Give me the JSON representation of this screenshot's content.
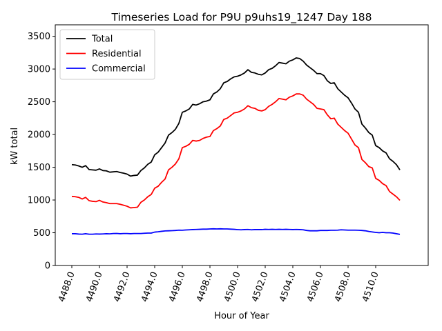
{
  "chart_data": {
    "type": "line",
    "title": "Timeseries Load for P9U p9uhs19_1247  Day 188",
    "xlabel": "Hour of Year",
    "ylabel": "kW total",
    "xlim": [
      4486.8,
      4513.8
    ],
    "ylim": [
      0,
      3675
    ],
    "xticks": [
      4488,
      4490,
      4492,
      4494,
      4496,
      4498,
      4500,
      4502,
      4504,
      4506,
      4508,
      4510
    ],
    "xtick_labels": [
      "4488.0",
      "4490.0",
      "4492.0",
      "4494.0",
      "4496.0",
      "4498.0",
      "4500.0",
      "4502.0",
      "4504.0",
      "4506.0",
      "4508.0",
      "4510.0"
    ],
    "yticks": [
      0,
      500,
      1000,
      1500,
      2000,
      2500,
      3000,
      3500
    ],
    "ytick_labels": [
      "0",
      "500",
      "1000",
      "1500",
      "2000",
      "2500",
      "3000",
      "3500"
    ],
    "legend_position": "top-left",
    "x": [
      4488.0,
      4488.25,
      4488.5,
      4488.75,
      4489.0,
      4489.25,
      4489.5,
      4489.75,
      4490.0,
      4490.25,
      4490.5,
      4490.75,
      4491.0,
      4491.25,
      4491.5,
      4491.75,
      4492.0,
      4492.25,
      4492.5,
      4492.75,
      4493.0,
      4493.25,
      4493.5,
      4493.75,
      4494.0,
      4494.25,
      4494.5,
      4494.75,
      4495.0,
      4495.25,
      4495.5,
      4495.75,
      4496.0,
      4496.25,
      4496.5,
      4496.75,
      4497.0,
      4497.25,
      4497.5,
      4497.75,
      4498.0,
      4498.25,
      4498.5,
      4498.75,
      4499.0,
      4499.25,
      4499.5,
      4499.75,
      4500.0,
      4500.25,
      4500.5,
      4500.75,
      4501.0,
      4501.25,
      4501.5,
      4501.75,
      4502.0,
      4502.25,
      4502.5,
      4502.75,
      4503.0,
      4503.25,
      4503.5,
      4503.75,
      4504.0,
      4504.25,
      4504.5,
      4504.75,
      4505.0,
      4505.25,
      4505.5,
      4505.75,
      4506.0,
      4506.25,
      4506.5,
      4506.75,
      4507.0,
      4507.25,
      4507.5,
      4507.75,
      4508.0,
      4508.25,
      4508.5,
      4508.75,
      4509.0,
      4509.25,
      4509.5,
      4509.75,
      4510.0,
      4510.25,
      4510.5,
      4510.75,
      4511.0,
      4511.25,
      4511.5,
      4511.75
    ],
    "series": [
      {
        "name": "Total",
        "color": "#000000",
        "values": [
          1540,
          1535,
          1520,
          1500,
          1525,
          1465,
          1460,
          1455,
          1475,
          1450,
          1445,
          1425,
          1430,
          1435,
          1420,
          1410,
          1395,
          1365,
          1375,
          1380,
          1450,
          1490,
          1545,
          1580,
          1690,
          1730,
          1800,
          1870,
          1990,
          2030,
          2080,
          2170,
          2340,
          2360,
          2390,
          2460,
          2450,
          2470,
          2500,
          2510,
          2530,
          2620,
          2650,
          2700,
          2790,
          2810,
          2850,
          2880,
          2890,
          2910,
          2940,
          2990,
          2950,
          2940,
          2920,
          2910,
          2940,
          2990,
          3010,
          3050,
          3100,
          3090,
          3080,
          3120,
          3140,
          3170,
          3160,
          3120,
          3060,
          3020,
          2980,
          2930,
          2930,
          2900,
          2820,
          2780,
          2790,
          2700,
          2650,
          2600,
          2560,
          2480,
          2390,
          2340,
          2160,
          2100,
          2030,
          1990,
          1830,
          1800,
          1750,
          1720,
          1630,
          1590,
          1540,
          1460
        ]
      },
      {
        "name": "Residential",
        "color": "#ff0000",
        "values": [
          1055,
          1050,
          1040,
          1015,
          1040,
          990,
          980,
          975,
          995,
          970,
          960,
          945,
          945,
          945,
          935,
          920,
          905,
          880,
          885,
          890,
          965,
          1000,
          1050,
          1085,
          1180,
          1210,
          1270,
          1320,
          1460,
          1500,
          1550,
          1630,
          1800,
          1820,
          1850,
          1910,
          1900,
          1910,
          1940,
          1960,
          1970,
          2060,
          2090,
          2130,
          2230,
          2250,
          2290,
          2330,
          2340,
          2360,
          2390,
          2440,
          2410,
          2400,
          2370,
          2360,
          2380,
          2430,
          2460,
          2500,
          2550,
          2540,
          2530,
          2570,
          2590,
          2620,
          2620,
          2600,
          2540,
          2500,
          2460,
          2400,
          2390,
          2380,
          2300,
          2240,
          2250,
          2160,
          2110,
          2060,
          2020,
          1930,
          1840,
          1800,
          1620,
          1570,
          1510,
          1490,
          1330,
          1300,
          1250,
          1220,
          1130,
          1090,
          1050,
          995
        ]
      },
      {
        "name": "Commercial",
        "color": "#0000ff",
        "values": [
          485,
          485,
          480,
          478,
          485,
          478,
          478,
          482,
          480,
          482,
          485,
          483,
          488,
          490,
          485,
          488,
          488,
          485,
          488,
          488,
          488,
          492,
          495,
          495,
          510,
          515,
          522,
          528,
          530,
          532,
          535,
          540,
          538,
          542,
          545,
          548,
          550,
          552,
          555,
          555,
          558,
          560,
          558,
          560,
          558,
          558,
          555,
          552,
          548,
          545,
          548,
          550,
          545,
          548,
          548,
          548,
          552,
          550,
          552,
          550,
          552,
          550,
          552,
          550,
          548,
          550,
          548,
          545,
          535,
          530,
          530,
          530,
          535,
          535,
          535,
          538,
          538,
          540,
          545,
          542,
          540,
          540,
          540,
          538,
          535,
          530,
          520,
          512,
          505,
          500,
          505,
          500,
          500,
          495,
          485,
          475
        ]
      }
    ]
  }
}
